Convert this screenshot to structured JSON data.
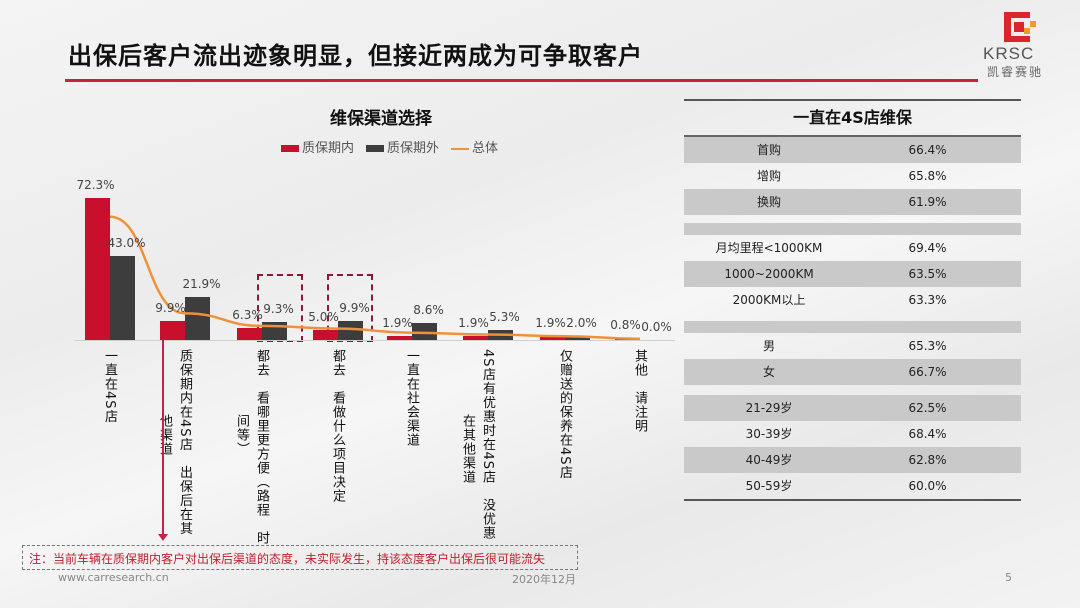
{
  "header": {
    "title": "出保后客户流出迹象明显，但接近两成为可争取客户",
    "logo_text": "KRSC",
    "logo_subtext": "凯睿赛驰",
    "accent_color": "#c4243f"
  },
  "chart_data": {
    "type": "bar",
    "title": "维保渠道选择",
    "categories": [
      "一直在4S店",
      "质保期内在4S店，出保后在其他渠道",
      "都去，看哪里更方便（路程、时间等）",
      "都去，看做什么项目决定",
      "一直在社会渠道",
      "4S店有优惠时在4S店，没优惠在其他渠道",
      "仅赠送的保养在4S店",
      "其他，请注明"
    ],
    "series": [
      {
        "name": "质保期内",
        "type": "bar",
        "color": "#c8102e",
        "values": [
          72.3,
          9.9,
          6.3,
          5.0,
          1.9,
          1.9,
          1.9,
          0.8
        ]
      },
      {
        "name": "质保期外",
        "type": "bar",
        "color": "#3d3d3d",
        "values": [
          43.0,
          21.9,
          9.3,
          9.9,
          8.6,
          5.3,
          2.0,
          0.0
        ]
      },
      {
        "name": "总体",
        "type": "line",
        "color": "#f0913a",
        "values": [
          62.9,
          13.6,
          7.2,
          5.8,
          3.7,
          2.8,
          1.9,
          0.6
        ]
      }
    ],
    "legend": [
      "质保期内",
      "质保期外",
      "总体"
    ],
    "legend_position": "top",
    "xlabel": "",
    "ylabel": "",
    "ylim": [
      0,
      80
    ],
    "grid": false,
    "data_labels": {
      "质保期内": [
        "72.3%",
        "9.9%",
        "6.3%",
        "5.0%",
        "1.9%",
        "1.9%",
        "1.9%",
        "0.8%"
      ],
      "质保期外": [
        "43.0%",
        "21.9%",
        "9.3%",
        "9.9%",
        "8.6%",
        "5.3%",
        "2.0%",
        "0.0%"
      ]
    },
    "annotations": [
      "categories 3 and 4 highlighted by dashed boxes",
      "arrow from category 2 to note"
    ]
  },
  "chart": {
    "title": "维保渠道选择",
    "legend": {
      "in": "质保期内",
      "out": "质保期外",
      "total": "总体"
    },
    "labels_in": [
      "72.3%",
      "9.9%",
      "6.3%",
      "5.0%",
      "1.9%",
      "1.9%",
      "1.9%",
      "0.8%"
    ],
    "labels_out": [
      "43.0%",
      "21.9%",
      "9.3%",
      "9.9%",
      "8.6%",
      "5.3%",
      "2.0%",
      "0.0%"
    ],
    "cat_labels": [
      [
        "一直在4S店"
      ],
      [
        "质保期内在4S店　出保后在其",
        "他渠道"
      ],
      [
        "都去　看哪里更方便（路程　时",
        "间等）"
      ],
      [
        "都去　看做什么项目决定"
      ],
      [
        "一直在社会渠道"
      ],
      [
        "4S店有优惠时在4S店　没优惠",
        "在其他渠道"
      ],
      [
        "仅赠送的保养在4S店"
      ],
      [
        "其他　请注明"
      ]
    ]
  },
  "table": {
    "title": "一直在4S店维保",
    "groups": [
      [
        {
          "k": "首购",
          "v": "66.4%"
        },
        {
          "k": "增购",
          "v": "65.8%"
        },
        {
          "k": "换购",
          "v": "61.9%"
        }
      ],
      [
        {
          "k": "月均里程<1000KM",
          "v": "69.4%"
        },
        {
          "k": "1000~2000KM",
          "v": "63.5%"
        },
        {
          "k": "2000KM以上",
          "v": "63.3%"
        }
      ],
      [
        {
          "k": "男",
          "v": "65.3%"
        },
        {
          "k": "女",
          "v": "66.7%"
        }
      ],
      [
        {
          "k": "21-29岁",
          "v": "62.5%"
        },
        {
          "k": "30-39岁",
          "v": "68.4%"
        },
        {
          "k": "40-49岁",
          "v": "62.8%"
        },
        {
          "k": "50-59岁",
          "v": "60.0%"
        }
      ]
    ]
  },
  "note": "注：当前车辆在质保期内客户对出保后渠道的态度，未实际发生，持该态度客户出保后很可能流失",
  "footer": {
    "url": "www.carresearch.cn",
    "date": "2020年12月",
    "page": "5"
  }
}
